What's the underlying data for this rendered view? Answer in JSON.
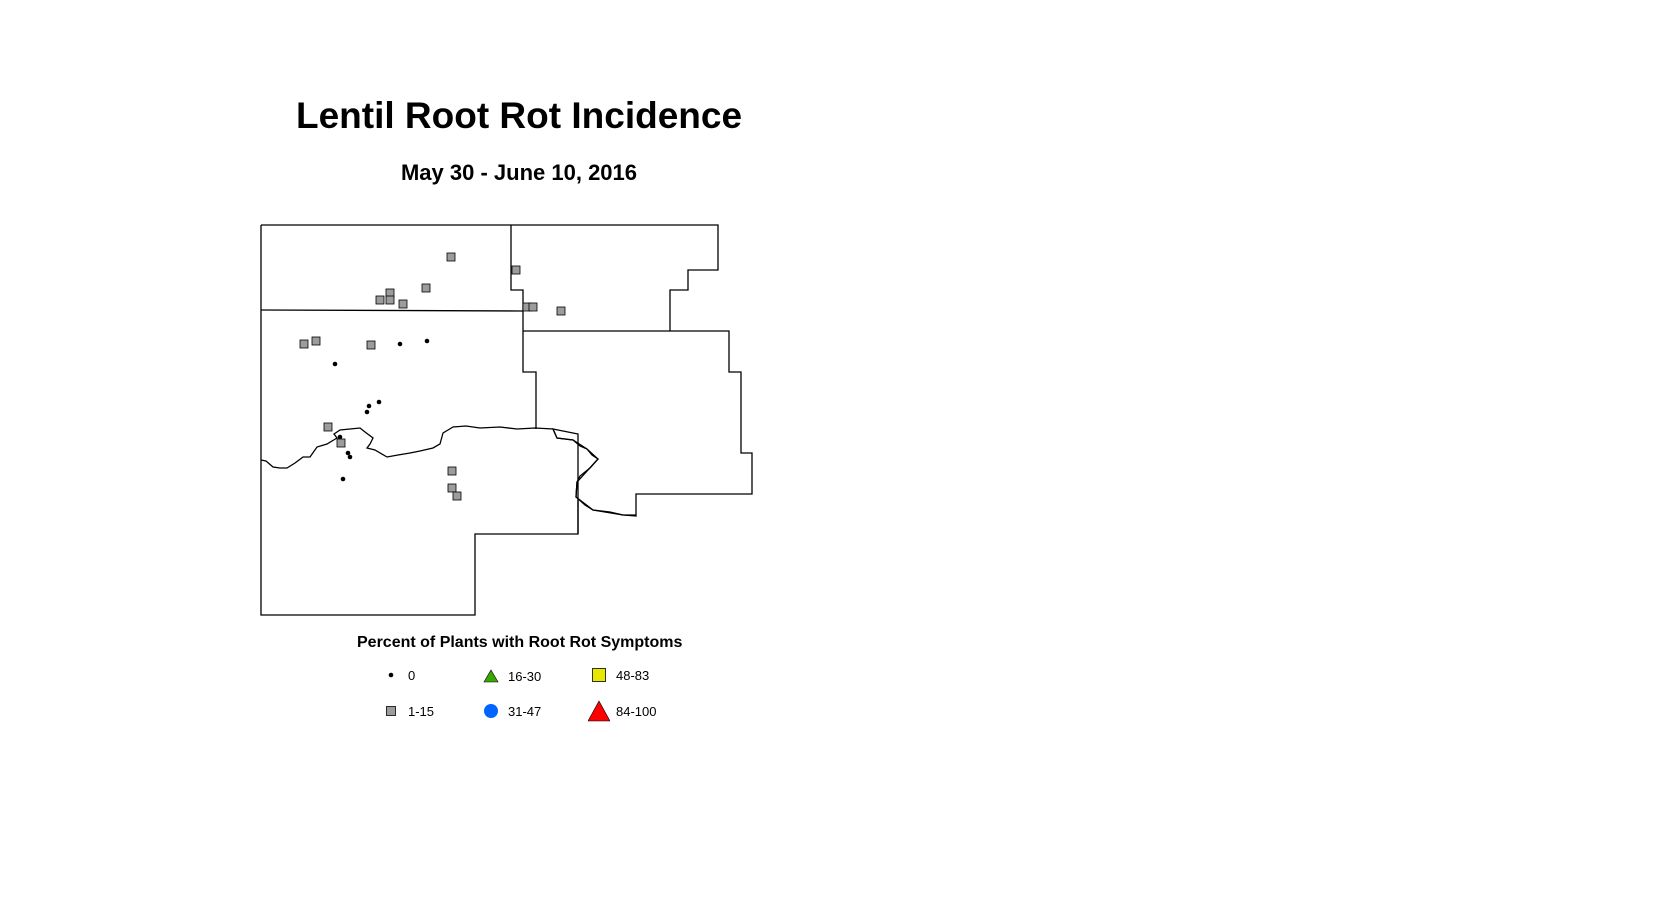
{
  "title": "Lentil Root Rot Incidence",
  "subtitle": "May 30 - June 10, 2016",
  "legend": {
    "title": "Percent of Plants with Root Rot Symptoms",
    "items": [
      {
        "label": "0",
        "symbol": "small-dot",
        "color": "#000000"
      },
      {
        "label": "1-15",
        "symbol": "square",
        "color": "#9c9c9c"
      },
      {
        "label": "16-30",
        "symbol": "triangle",
        "color": "#38a800"
      },
      {
        "label": "31-47",
        "symbol": "circle",
        "color": "#0064ff"
      },
      {
        "label": "48-83",
        "symbol": "square",
        "color": "#e6e600"
      },
      {
        "label": "84-100",
        "symbol": "triangle",
        "color": "#ff0000"
      }
    ]
  }
}
